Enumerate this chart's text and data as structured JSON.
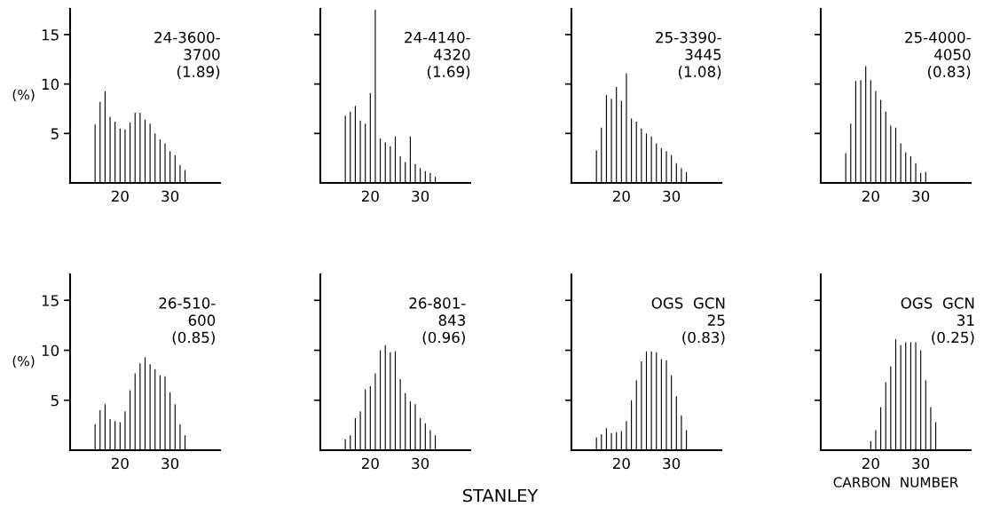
{
  "chart_data": [
    {
      "type": "bar",
      "title": "24-3600-\n3700\n(1.89)",
      "ylabel": "(%)",
      "color": "#000000",
      "xlim": [
        10,
        40
      ],
      "ylim": [
        0,
        17.6
      ],
      "xticks": [
        20,
        30
      ],
      "yticks": [
        5,
        10,
        15
      ],
      "grid": false,
      "x": [
        15,
        16,
        17,
        18,
        19,
        20,
        21,
        22,
        23,
        24,
        25,
        26,
        27,
        28,
        29,
        30,
        31,
        32,
        33
      ],
      "values": [
        5.9,
        8.2,
        9.3,
        6.7,
        6.2,
        5.5,
        5.4,
        6.1,
        7.1,
        7.1,
        6.4,
        6.0,
        5.0,
        4.4,
        4.0,
        3.2,
        2.8,
        1.8,
        1.3
      ]
    },
    {
      "type": "bar",
      "title": "24-4140-\n4320\n(1.69)",
      "color": "#000000",
      "xlim": [
        10,
        40
      ],
      "ylim": [
        0,
        17.6
      ],
      "xticks": [
        20,
        30
      ],
      "yticks": [
        5,
        10,
        15
      ],
      "tick_labels": "x",
      "grid": false,
      "x": [
        15,
        16,
        17,
        18,
        19,
        20,
        21,
        22,
        23,
        24,
        25,
        26,
        27,
        28,
        29,
        30,
        31,
        32,
        33
      ],
      "values": [
        6.8,
        7.2,
        7.8,
        6.3,
        6.0,
        9.1,
        17.5,
        4.5,
        4.1,
        3.7,
        4.7,
        2.7,
        2.1,
        4.7,
        1.9,
        1.5,
        1.2,
        1.0,
        0.6
      ]
    },
    {
      "type": "bar",
      "title": "25-3390-\n3445\n(1.08)",
      "color": "#000000",
      "xlim": [
        10,
        40
      ],
      "ylim": [
        0,
        17.6
      ],
      "xticks": [
        20,
        30
      ],
      "yticks": [
        5,
        10,
        15
      ],
      "tick_labels": "x",
      "grid": false,
      "x": [
        15,
        16,
        17,
        18,
        19,
        20,
        21,
        22,
        23,
        24,
        25,
        26,
        27,
        28,
        29,
        30,
        31,
        32,
        33
      ],
      "values": [
        3.3,
        5.6,
        8.9,
        8.5,
        9.7,
        8.3,
        11.1,
        6.5,
        6.2,
        5.5,
        5.0,
        4.7,
        4.0,
        3.5,
        3.2,
        2.8,
        2.0,
        1.5,
        1.1
      ]
    },
    {
      "type": "bar",
      "title": "25-4000-\n4050\n(0.83)",
      "color": "#000000",
      "xlim": [
        10,
        40
      ],
      "ylim": [
        0,
        17.6
      ],
      "xticks": [
        20,
        30
      ],
      "yticks": [
        5,
        10,
        15
      ],
      "tick_labels": "x",
      "grid": false,
      "x": [
        15,
        16,
        17,
        18,
        19,
        20,
        21,
        22,
        23,
        24,
        25,
        26,
        27,
        28,
        29,
        30,
        31
      ],
      "values": [
        3.0,
        6.0,
        10.3,
        10.4,
        11.8,
        10.4,
        9.3,
        8.4,
        7.2,
        5.8,
        5.6,
        4.0,
        3.1,
        2.7,
        2.0,
        1.0,
        1.1
      ]
    },
    {
      "type": "bar",
      "title": "26-510-\n600\n(0.85)",
      "ylabel": "(%)",
      "color": "#000000",
      "xlim": [
        10,
        40
      ],
      "ylim": [
        0,
        17.6
      ],
      "xticks": [
        20,
        30
      ],
      "yticks": [
        5,
        10,
        15
      ],
      "grid": false,
      "x": [
        15,
        16,
        17,
        18,
        19,
        20,
        21,
        22,
        23,
        24,
        25,
        26,
        27,
        28,
        29,
        30,
        31,
        32,
        33
      ],
      "values": [
        2.6,
        4.0,
        4.6,
        3.1,
        2.9,
        2.8,
        3.9,
        6.0,
        7.7,
        8.7,
        9.3,
        8.6,
        8.1,
        7.5,
        7.4,
        5.8,
        4.6,
        2.6,
        1.5
      ]
    },
    {
      "type": "bar",
      "title": "26-801-\n843\n(0.96)",
      "color": "#000000",
      "xlim": [
        10,
        40
      ],
      "ylim": [
        0,
        17.6
      ],
      "xticks": [
        20,
        30
      ],
      "yticks": [
        5,
        10,
        15
      ],
      "tick_labels": "x",
      "grid": false,
      "annotations": [
        "STANLEY"
      ],
      "x": [
        15,
        16,
        17,
        18,
        19,
        20,
        21,
        22,
        23,
        24,
        25,
        26,
        27,
        28,
        29,
        30,
        31,
        32,
        33
      ],
      "values": [
        1.1,
        1.5,
        3.2,
        3.9,
        6.1,
        6.4,
        7.7,
        10.0,
        10.5,
        9.8,
        9.9,
        7.1,
        5.7,
        4.9,
        4.6,
        3.2,
        2.7,
        2.0,
        1.5
      ]
    },
    {
      "type": "bar",
      "title": "OGS  GCN\n25\n(0.83)",
      "color": "#000000",
      "xlim": [
        10,
        40
      ],
      "ylim": [
        0,
        17.6
      ],
      "xticks": [
        20,
        30
      ],
      "yticks": [
        5,
        10,
        15
      ],
      "tick_labels": "x",
      "grid": false,
      "x": [
        15,
        16,
        17,
        18,
        19,
        20,
        21,
        22,
        23,
        24,
        25,
        26,
        27,
        28,
        29,
        30,
        31,
        32,
        33
      ],
      "values": [
        1.3,
        1.6,
        2.2,
        1.7,
        1.8,
        1.9,
        2.9,
        5.0,
        7.0,
        8.9,
        9.9,
        9.9,
        9.8,
        9.1,
        9.0,
        7.5,
        5.4,
        3.5,
        2.0
      ]
    },
    {
      "type": "bar",
      "title": "OGS  GCN\n31\n(0.25)",
      "xlabel": "CARBON  NUMBER",
      "color": "#000000",
      "xlim": [
        10,
        40
      ],
      "ylim": [
        0,
        17.6
      ],
      "xticks": [
        20,
        30
      ],
      "yticks": [
        5,
        10,
        15
      ],
      "tick_labels": "x",
      "grid": false,
      "x": [
        20,
        21,
        22,
        23,
        24,
        25,
        26,
        27,
        28,
        29,
        30,
        31,
        32,
        33
      ],
      "values": [
        0.9,
        2.0,
        4.3,
        6.8,
        8.4,
        11.1,
        10.5,
        10.8,
        10.8,
        10.8,
        10.0,
        7.0,
        4.3,
        2.8
      ]
    }
  ]
}
